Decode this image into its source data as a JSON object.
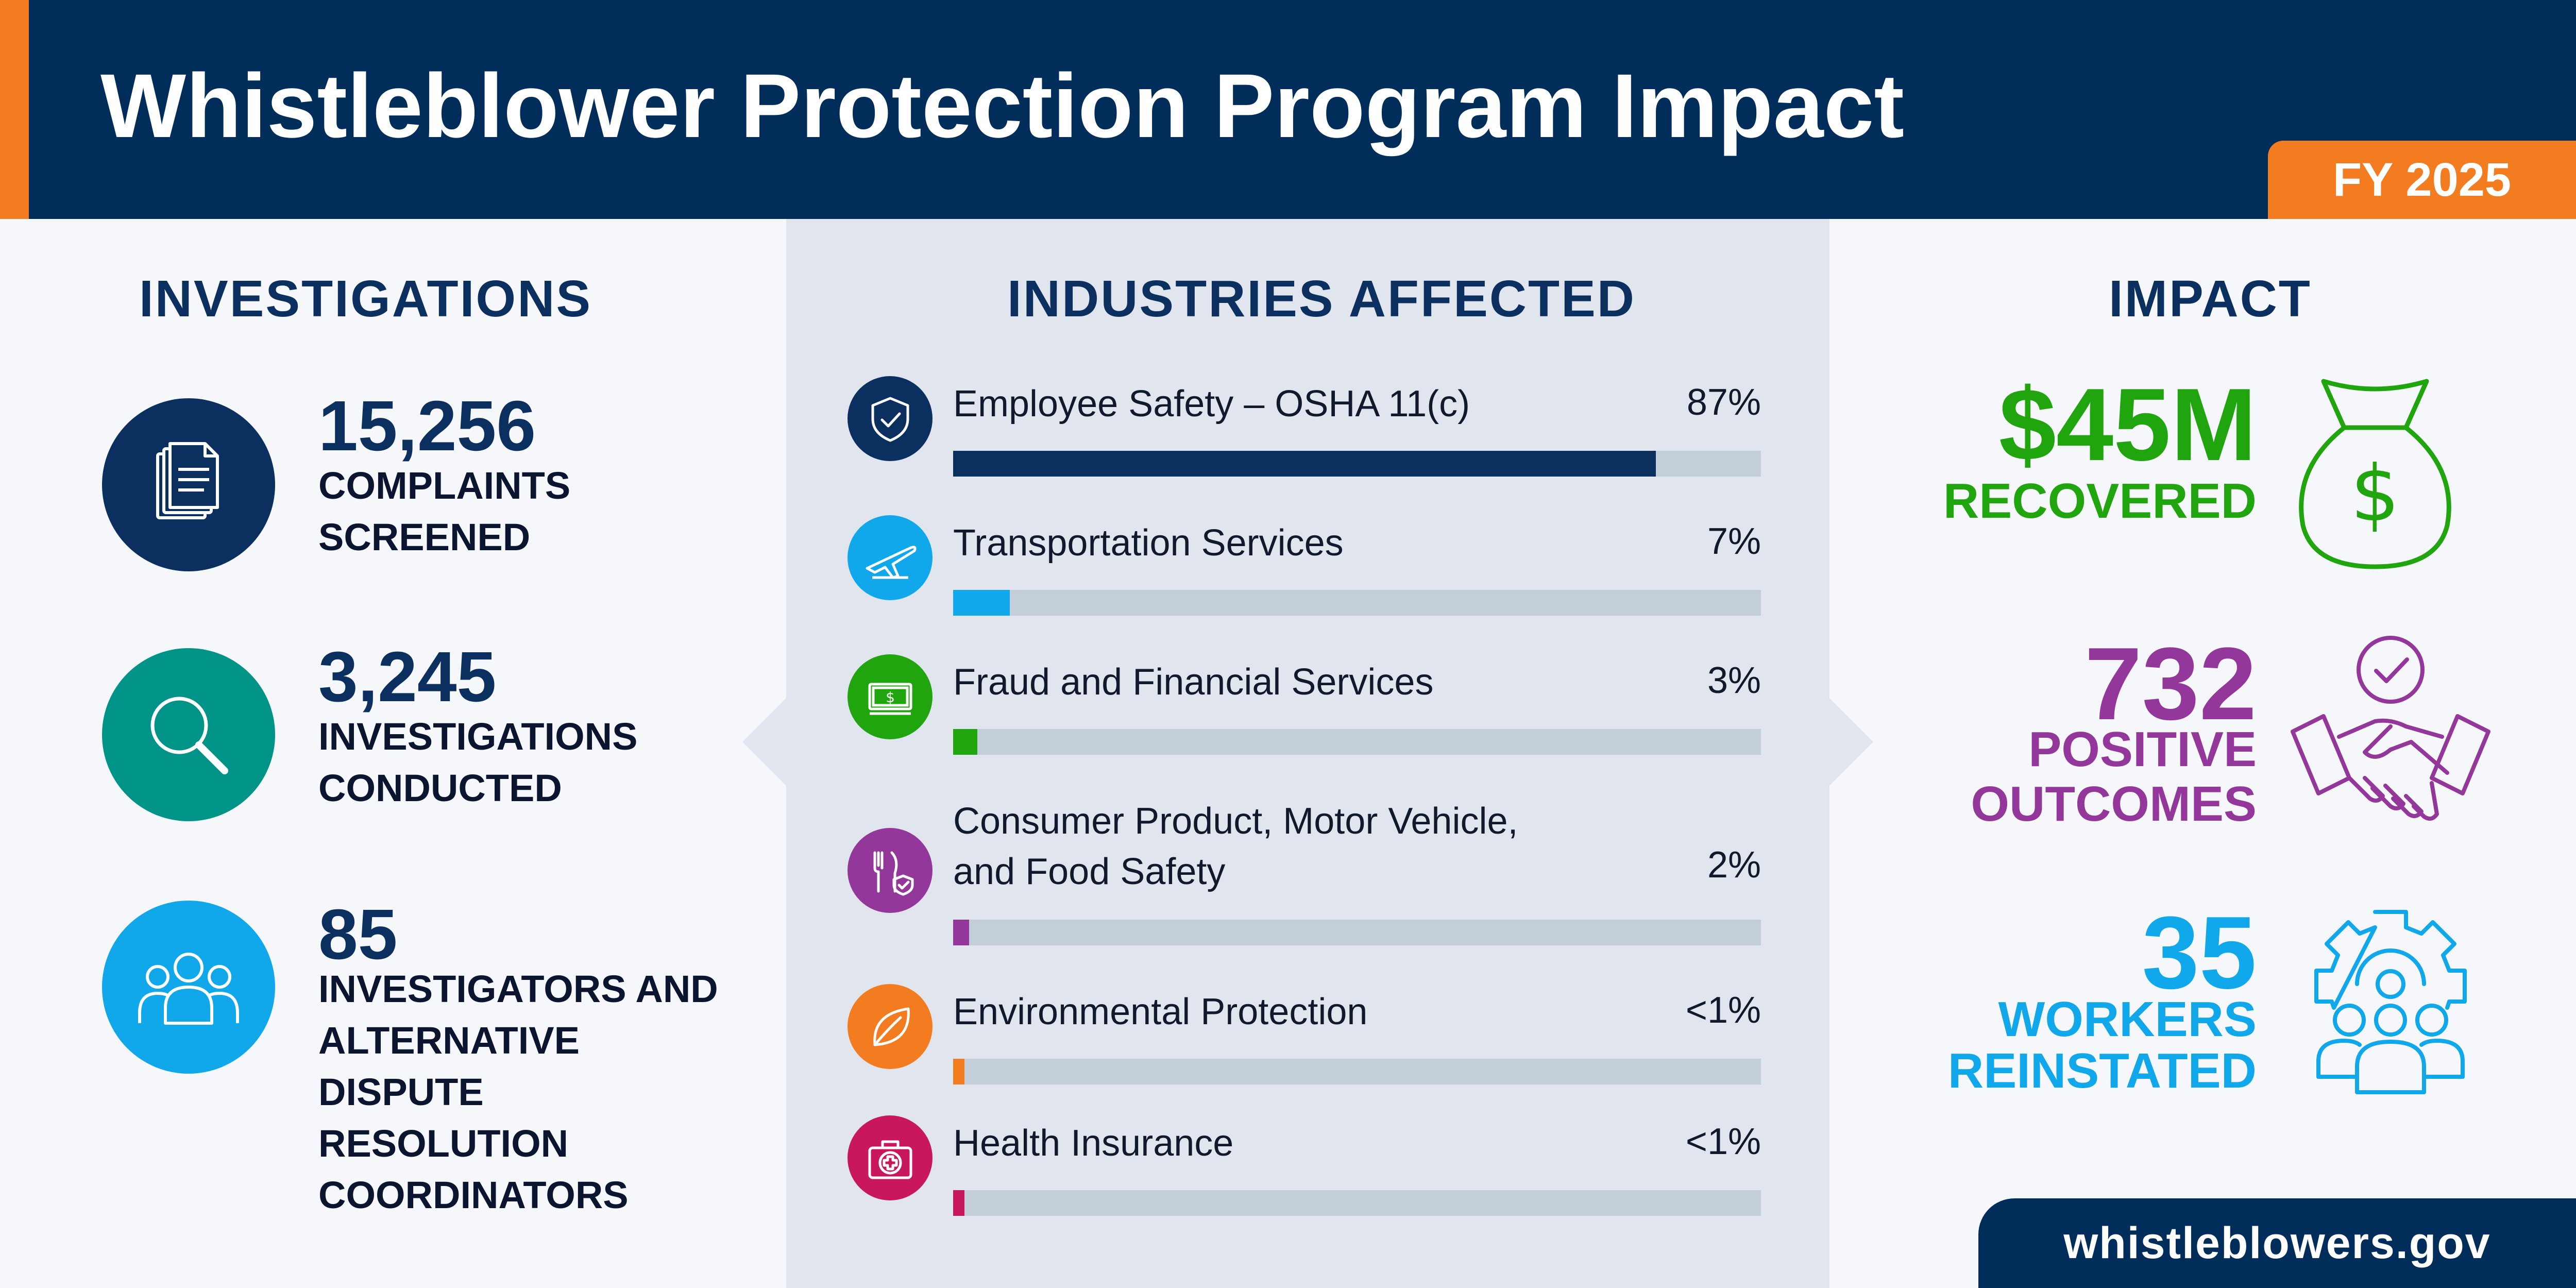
{
  "header": {
    "title": "Whistleblower Protection Program Impact",
    "fiscal_year": "FY 2025"
  },
  "investigations": {
    "heading": "INVESTIGATIONS",
    "items": [
      {
        "value": "15,256",
        "label": "COMPLAINTS SCREENED",
        "icon": "documents-icon",
        "color": "#0b3060"
      },
      {
        "value": "3,245",
        "label": "INVESTIGATIONS CONDUCTED",
        "icon": "magnifier-icon",
        "color": "#009488"
      },
      {
        "value": "85",
        "label": "INVESTIGATORS AND ALTERNATIVE DISPUTE RESOLUTION COORDINATORS",
        "icon": "people-icon",
        "color": "#10a8ea"
      }
    ]
  },
  "industries": {
    "heading": "INDUSTRIES AFFECTED",
    "items": [
      {
        "label": "Employee Safety – OSHA 11(c)",
        "percent_label": "87%",
        "value": 87,
        "color": "#0b3060",
        "icon": "shield-check-icon"
      },
      {
        "label": "Transportation Services",
        "percent_label": "7%",
        "value": 7,
        "color": "#10a8ea",
        "icon": "airplane-icon"
      },
      {
        "label": "Fraud and Financial Services",
        "percent_label": "3%",
        "value": 3,
        "color": "#21a50f",
        "icon": "money-icon"
      },
      {
        "label": "Consumer Product, Motor Vehicle, and Food Safety",
        "percent_label": "2%",
        "value": 2,
        "color": "#93389a",
        "icon": "food-safety-icon"
      },
      {
        "label": "Environmental Protection",
        "percent_label": "<1%",
        "value": 1,
        "color": "#f47c20",
        "icon": "leaf-icon"
      },
      {
        "label": "Health Insurance",
        "percent_label": "<1%",
        "value": 1,
        "color": "#c8175d",
        "icon": "medical-kit-icon"
      }
    ]
  },
  "impact": {
    "heading": "IMPACT",
    "items": [
      {
        "value": "$45M",
        "label": "RECOVERED",
        "color": "#21a50f",
        "icon": "money-bag-icon"
      },
      {
        "value": "732",
        "label_line1": "POSITIVE",
        "label_line2": "OUTCOMES",
        "color": "#93389a",
        "icon": "handshake-icon"
      },
      {
        "value": "35",
        "label_line1": "WORKERS",
        "label_line2": "REINSTATED",
        "color": "#10a8ea",
        "icon": "workers-gear-icon"
      }
    ]
  },
  "footer": {
    "url": "whistleblowers.gov"
  }
}
